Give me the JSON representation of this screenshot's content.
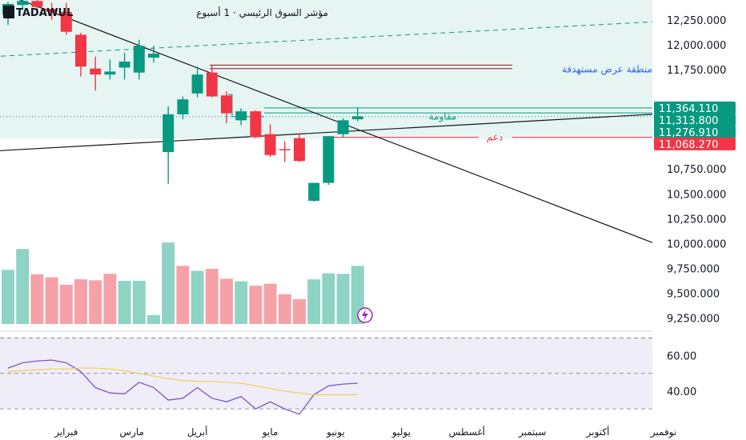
{
  "header": {
    "symbol": "TADAWUL",
    "description": "مؤشر السوق الرئيسي · 1 أسبوع"
  },
  "annotations": {
    "supply_zone": "منطقة عرض مستهدفة",
    "resistance": "مقاومة",
    "support": "دعم"
  },
  "price_tags": [
    {
      "value": 11364.11,
      "label": "11,364.110",
      "color": "#089981"
    },
    {
      "value": 11313.8,
      "label": "11,313.800",
      "color": "#089981"
    },
    {
      "value": 11276.91,
      "label": "11,276.910",
      "color": "#089981"
    },
    {
      "value": 11068.27,
      "label": "11,068.270",
      "color": "#f23645"
    }
  ],
  "colors": {
    "up": "#089981",
    "down": "#f23645",
    "up_volume": "#8fd3c5",
    "down_volume": "#f6a1a8",
    "rsi_line": "#7e57c2",
    "rsi_ma": "#f7c948",
    "zone_fill": "#e6f5f2",
    "rsi_fill": "#efedf7"
  },
  "icons": {
    "flash": "lightning-icon"
  },
  "chart_data": [
    {
      "type": "candlestick",
      "title": "",
      "y_tick_labels": [
        "12,250.000",
        "12,000.000",
        "11,750.000",
        "10,750.000",
        "10,500.000",
        "10,250.000",
        "10,000.000",
        "9,750.000",
        "9,500.000",
        "9,250.000"
      ],
      "y_tick_values": [
        12250,
        12000,
        11750,
        10750,
        10500,
        10250,
        10000,
        9750,
        9500,
        9250
      ],
      "ylim": [
        9150,
        12450
      ],
      "x_tick_labels": [
        "فبراير",
        "مارس",
        "أبريل",
        "مايو",
        "يونيو",
        "يوليو",
        "أغسطس",
        "سبتمبر",
        "أكتوبر",
        "نوفمبر"
      ],
      "x_tick_positions": [
        4,
        8.5,
        13,
        18,
        22.5,
        27,
        31.5,
        36,
        40.5,
        45
      ],
      "candles": [
        {
          "o": 12300,
          "h": 12430,
          "l": 12200,
          "c": 12410
        },
        {
          "o": 12400,
          "h": 12470,
          "l": 12350,
          "c": 12440
        },
        {
          "o": 12440,
          "h": 12460,
          "l": 12330,
          "c": 12380
        },
        {
          "o": 12360,
          "h": 12420,
          "l": 12250,
          "c": 12330
        },
        {
          "o": 12330,
          "h": 12420,
          "l": 12100,
          "c": 12130
        },
        {
          "o": 12100,
          "h": 12120,
          "l": 11680,
          "c": 11780
        },
        {
          "o": 11760,
          "h": 11880,
          "l": 11540,
          "c": 11700
        },
        {
          "o": 11700,
          "h": 11850,
          "l": 11650,
          "c": 11730
        },
        {
          "o": 11770,
          "h": 11920,
          "l": 11650,
          "c": 11830
        },
        {
          "o": 11720,
          "h": 12050,
          "l": 11650,
          "c": 11990
        },
        {
          "o": 11870,
          "h": 11990,
          "l": 11820,
          "c": 11910
        },
        {
          "o": 10920,
          "h": 11380,
          "l": 10600,
          "c": 11300
        },
        {
          "o": 11300,
          "h": 11480,
          "l": 11250,
          "c": 11450
        },
        {
          "o": 11510,
          "h": 11780,
          "l": 11470,
          "c": 11700
        },
        {
          "o": 11720,
          "h": 11800,
          "l": 11470,
          "c": 11480
        },
        {
          "o": 11490,
          "h": 11530,
          "l": 11210,
          "c": 11310
        },
        {
          "o": 11240,
          "h": 11360,
          "l": 11190,
          "c": 11330
        },
        {
          "o": 11330,
          "h": 11340,
          "l": 11060,
          "c": 11070
        },
        {
          "o": 11100,
          "h": 11200,
          "l": 10870,
          "c": 10890
        },
        {
          "o": 10950,
          "h": 11030,
          "l": 10820,
          "c": 10940
        },
        {
          "o": 11060,
          "h": 11110,
          "l": 10820,
          "c": 10830
        },
        {
          "o": 10430,
          "h": 10610,
          "l": 10420,
          "c": 10610
        },
        {
          "o": 10610,
          "h": 11080,
          "l": 10590,
          "c": 11080
        },
        {
          "o": 11100,
          "h": 11260,
          "l": 11070,
          "c": 11240
        },
        {
          "o": 11250,
          "h": 11370,
          "l": 11230,
          "c": 11280
        }
      ],
      "volume": {
        "values": [
          9735,
          9945,
          9690,
          9660,
          9585,
          9640,
          9630,
          9695,
          9625,
          9625,
          9280,
          10010,
          9775,
          9725,
          9745,
          9645,
          9620,
          9575,
          9595,
          9490,
          9440,
          9640,
          9700,
          9695,
          9775
        ],
        "directions": [
          "up",
          "up",
          "down",
          "down",
          "down",
          "down",
          "down",
          "down",
          "up",
          "up",
          "up",
          "up",
          "down",
          "up",
          "down",
          "down",
          "up",
          "down",
          "down",
          "down",
          "down",
          "up",
          "up",
          "up",
          "up"
        ]
      },
      "levels": {
        "supply_top": 11795,
        "supply_bottom": 11760,
        "resistance_top": 11364.11,
        "resistance_bottom": 11276.91,
        "support": 11068.27
      }
    },
    {
      "type": "line",
      "title": "",
      "y_tick_labels": [
        "60.00",
        "40.00"
      ],
      "y_tick_values": [
        60,
        40
      ],
      "ylim": [
        26,
        72
      ],
      "guides": [
        70,
        50,
        30
      ],
      "series": [
        {
          "key": "rsi",
          "values": [
            53,
            56,
            57,
            57.5,
            56,
            51,
            42,
            39,
            38.5,
            45,
            42,
            35,
            36,
            42,
            36,
            34,
            37,
            30,
            34,
            30,
            27,
            38,
            43,
            44,
            44.5
          ]
        },
        {
          "key": "rsi_ma",
          "values": [
            51,
            51.5,
            52,
            52.5,
            52.5,
            53,
            53,
            52.5,
            51.5,
            50,
            48.5,
            47,
            46,
            45.5,
            45.5,
            45,
            44.5,
            43,
            41.5,
            40,
            39,
            38,
            38,
            38,
            38
          ]
        }
      ]
    }
  ]
}
